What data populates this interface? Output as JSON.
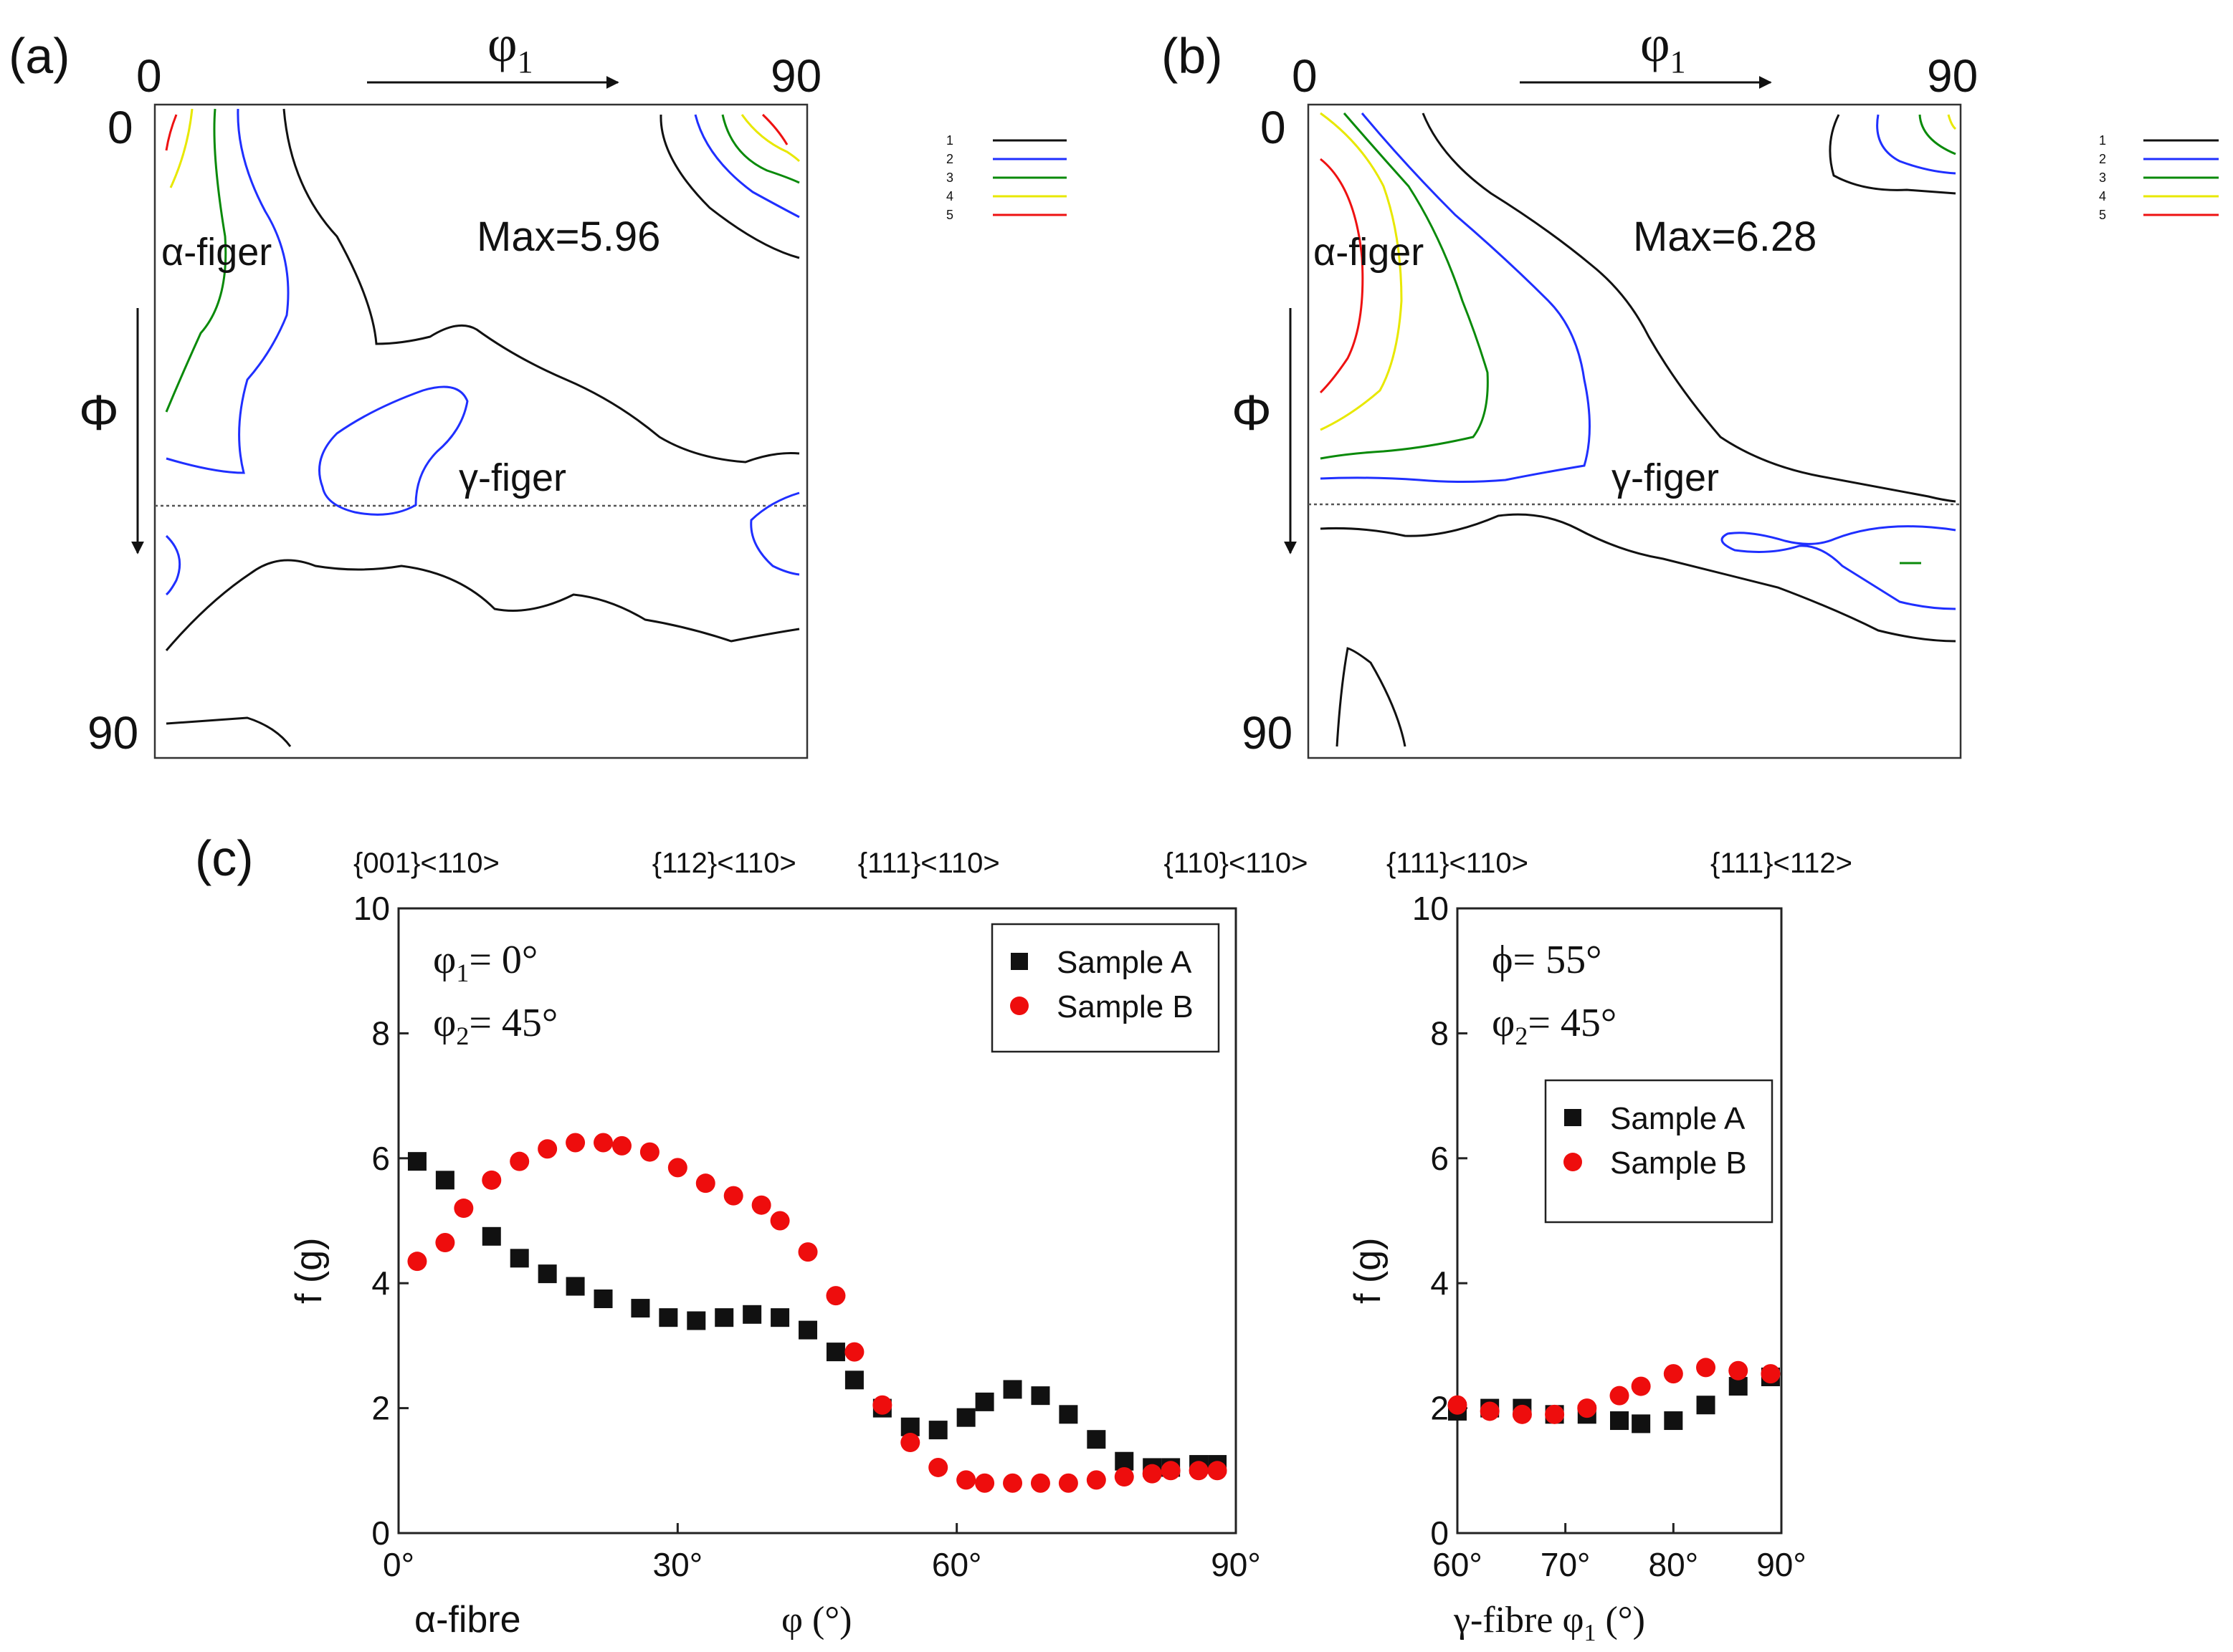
{
  "colors": {
    "level1": "#111111",
    "level2": "#1f2fff",
    "level3": "#0a8a0a",
    "level4": "#e8e800",
    "level5": "#ee1111",
    "sampleA": "#111111",
    "sampleB": "#ee0d0d"
  },
  "panels": {
    "a": {
      "label": "(a)",
      "phi1_symbol": "φ",
      "phi1_sub": "1",
      "tick_left": "0",
      "tick_right": "90",
      "tick_top": "0",
      "tick_bottom": "90",
      "Phi_symbol": "Φ",
      "alpha_label": "α-figer",
      "gamma_label": "γ-figer",
      "max_label": "Max=5.96",
      "legend_levels": [
        "1",
        "2",
        "3",
        "4",
        "5"
      ]
    },
    "b": {
      "label": "(b)",
      "phi1_symbol": "φ",
      "phi1_sub": "1",
      "tick_left": "0",
      "tick_right": "90",
      "tick_top": "0",
      "tick_bottom": "90",
      "Phi_symbol": "Φ",
      "alpha_label": "α-figer",
      "gamma_label": "γ-figer",
      "max_label": "Max=6.28",
      "legend_levels": [
        "1",
        "2",
        "3",
        "4",
        "5"
      ]
    }
  },
  "panel_c_label": "(c)",
  "chart_data": [
    {
      "type": "scatter",
      "title": "",
      "xlabel": "φ (°)",
      "xlabel_left": "α-fibre",
      "ylabel": "f (g)",
      "xlim": [
        0,
        90
      ],
      "ylim": [
        0,
        10
      ],
      "xticks": [
        0,
        30,
        60,
        90
      ],
      "xtick_labels": [
        "0°",
        "30°",
        "60°",
        "90°"
      ],
      "yticks": [
        0,
        2,
        4,
        6,
        8,
        10
      ],
      "ytick_labels": [
        "0",
        "2",
        "4",
        "6",
        "8",
        "10"
      ],
      "conditions": [
        {
          "symbol": "φ",
          "sub": "1",
          "value": "= 0°"
        },
        {
          "symbol": "φ",
          "sub": "2",
          "value": "= 45°"
        }
      ],
      "top_annotations": [
        {
          "x": 3,
          "text": "{001}<110>"
        },
        {
          "x": 35,
          "text": "{112}<110>"
        },
        {
          "x": 57,
          "text": "{111}<110>"
        },
        {
          "x": 90,
          "text": "{110}<110>"
        }
      ],
      "legend_position": "top-right",
      "series": [
        {
          "name": "Sample A",
          "marker": "square",
          "x": [
            2,
            5,
            10,
            13,
            16,
            19,
            22,
            26,
            29,
            32,
            35,
            38,
            41,
            44,
            47,
            49,
            52,
            55,
            58,
            61,
            63,
            66,
            69,
            72,
            75,
            78,
            81,
            83,
            86,
            88
          ],
          "y": [
            5.95,
            5.65,
            4.75,
            4.4,
            4.15,
            3.95,
            3.75,
            3.6,
            3.45,
            3.4,
            3.45,
            3.5,
            3.45,
            3.25,
            2.9,
            2.45,
            2.0,
            1.7,
            1.65,
            1.85,
            2.1,
            2.3,
            2.2,
            1.9,
            1.5,
            1.15,
            1.05,
            1.05,
            1.1,
            1.1
          ]
        },
        {
          "name": "Sample B",
          "marker": "circle",
          "x": [
            2,
            5,
            7,
            10,
            13,
            16,
            19,
            22,
            24,
            27,
            30,
            33,
            36,
            39,
            41,
            44,
            47,
            49,
            52,
            55,
            58,
            61,
            63,
            66,
            69,
            72,
            75,
            78,
            81,
            83,
            86,
            88
          ],
          "y": [
            4.35,
            4.65,
            5.2,
            5.65,
            5.95,
            6.15,
            6.25,
            6.25,
            6.2,
            6.1,
            5.85,
            5.6,
            5.4,
            5.25,
            5.0,
            4.5,
            3.8,
            2.9,
            2.05,
            1.45,
            1.05,
            0.85,
            0.8,
            0.8,
            0.8,
            0.8,
            0.85,
            0.9,
            0.95,
            1.0,
            1.0,
            1.0
          ]
        }
      ]
    },
    {
      "type": "scatter",
      "title": "",
      "xlabel": "γ-fibre φ (°)",
      "xlabel_sub": "1",
      "ylabel": "f (g)",
      "xlim": [
        60,
        90
      ],
      "ylim": [
        0,
        10
      ],
      "xticks": [
        60,
        70,
        80,
        90
      ],
      "xtick_labels": [
        "60°",
        "70°",
        "80°",
        "90°"
      ],
      "yticks": [
        0,
        2,
        4,
        6,
        8,
        10
      ],
      "ytick_labels": [
        "0",
        "2",
        "4",
        "6",
        "8",
        "10"
      ],
      "conditions": [
        {
          "symbol": "ϕ",
          "sub": "",
          "value": "= 55°"
        },
        {
          "symbol": "φ",
          "sub": "2",
          "value": "= 45°"
        }
      ],
      "top_annotations": [
        {
          "x": 60,
          "text": "{111}<110>"
        },
        {
          "x": 90,
          "text": "{111}<112>"
        }
      ],
      "legend_position": "right-middle",
      "series": [
        {
          "name": "Sample A",
          "marker": "square",
          "x": [
            60,
            63,
            66,
            69,
            72,
            75,
            77,
            80,
            83,
            86,
            89
          ],
          "y": [
            1.95,
            2.0,
            2.0,
            1.9,
            1.9,
            1.8,
            1.75,
            1.8,
            2.05,
            2.35,
            2.5
          ]
        },
        {
          "name": "Sample B",
          "marker": "circle",
          "x": [
            60,
            63,
            66,
            69,
            72,
            75,
            77,
            80,
            83,
            86,
            89
          ],
          "y": [
            2.05,
            1.95,
            1.9,
            1.9,
            2.0,
            2.2,
            2.35,
            2.55,
            2.65,
            2.6,
            2.55
          ]
        }
      ]
    }
  ]
}
